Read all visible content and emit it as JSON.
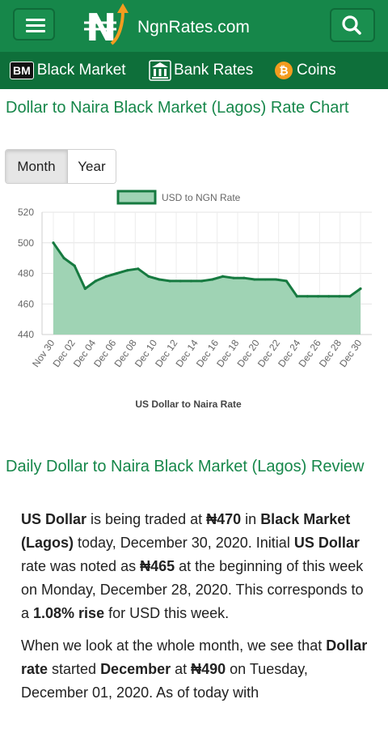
{
  "header": {
    "logo_text": "NgnRates.com",
    "menu_icon": "hamburger-menu-icon",
    "search_icon": "search-icon",
    "colors": {
      "bar": "#16874a",
      "nav": "#0e6f3a",
      "accent": "#f39c1f"
    }
  },
  "nav": {
    "items": [
      {
        "badge": "BM",
        "label": "Black Market",
        "icon": "bm-badge-icon"
      },
      {
        "label": "Bank Rates",
        "icon": "bank-icon"
      },
      {
        "label": "Coins",
        "icon": "bitcoin-icon"
      }
    ]
  },
  "page": {
    "chart_title": "Dollar to Naira Black Market (Lagos) Rate Chart",
    "tabs": {
      "month": "Month",
      "year": "Year",
      "active": "Month"
    },
    "review_title": "Daily Dollar to Naira Black Market (Lagos) Review"
  },
  "chart_data": {
    "type": "area",
    "legend": "USD to NGN Rate",
    "legend_position": "top",
    "xlabel": "US Dollar to Naira Rate",
    "x_tick_labels": [
      "Nov 30",
      "Dec 02",
      "Dec 04",
      "Dec 06",
      "Dec 08",
      "Dec 10",
      "Dec 12",
      "Dec 14",
      "Dec 16",
      "Dec 18",
      "Dec 20",
      "Dec 22",
      "Dec 24",
      "Dec 26",
      "Dec 28",
      "Dec 30"
    ],
    "ylim": [
      440,
      520
    ],
    "yticks": [
      440,
      460,
      480,
      500,
      520
    ],
    "grid": true,
    "colors": {
      "line": "#167a40",
      "fill": "#9fd3b4"
    },
    "series": [
      {
        "name": "USD to NGN Rate",
        "values": [
          500,
          490,
          485,
          470,
          475,
          478,
          480,
          482,
          483,
          478,
          476,
          475,
          475,
          475,
          475,
          476,
          478,
          477,
          477,
          476,
          476,
          476,
          475,
          465,
          465,
          465,
          465,
          465,
          465,
          470
        ]
      }
    ]
  },
  "review": {
    "p1": {
      "s1": "US Dollar",
      "s2": " is being traded at ",
      "s3": "₦470",
      "s4": " in ",
      "s5": "Black Market (Lagos)",
      "s6": " today, December 30, 2020. Initial ",
      "s7": "US Dollar",
      "s8": " rate was noted as ",
      "s9": "₦465",
      "s10": " at the beginning of this week on Monday, December 28, 2020. This corresponds to a ",
      "s11": "1.08% rise",
      "s12": " for USD this week."
    },
    "p2": {
      "s1": "When we look at the whole month, we see that ",
      "s2": "Dollar rate",
      "s3": " started ",
      "s4": "December",
      "s5": " at ",
      "s6": "₦490",
      "s7": " on Tuesday, December 01, 2020. As of today with"
    }
  }
}
